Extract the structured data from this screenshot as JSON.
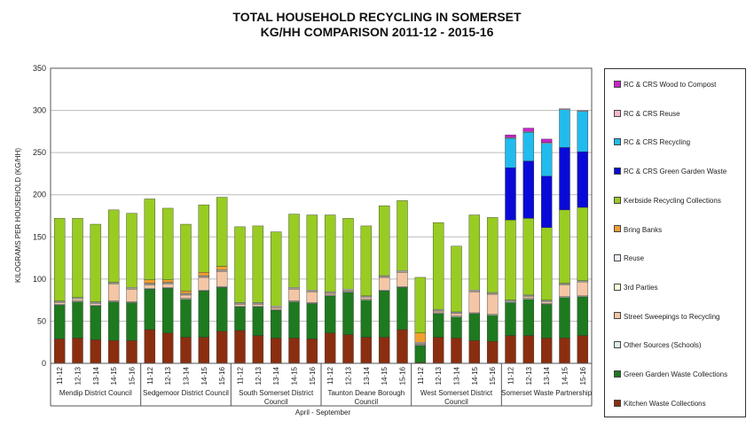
{
  "chart_data": {
    "type": "bar",
    "stacked": true,
    "title": "TOTAL HOUSEHOLD RECYCLING IN SOMERSET",
    "subtitle": "KG/HH COMPARISON 2011-12 - 2015-16",
    "ylabel": "KILOGRAMS PER HOUSEHOLD (KG/HH)",
    "xlabel": "April - September",
    "ylim": [
      0,
      350
    ],
    "yticks": [
      0,
      50,
      100,
      150,
      200,
      250,
      300,
      350
    ],
    "grid": true,
    "legend_position": "right",
    "groups": [
      {
        "name": "Mendip District Council",
        "categories": [
          "11-12",
          "12-13",
          "13-14",
          "14-15",
          "15-16"
        ]
      },
      {
        "name": "Sedgemoor District Council",
        "categories": [
          "11-12",
          "12-13",
          "13-14",
          "14-15",
          "15-16"
        ]
      },
      {
        "name": "South Somerset District Council",
        "categories": [
          "11-12",
          "12-13",
          "13-14",
          "14-15",
          "15-16"
        ]
      },
      {
        "name": "Taunton Deane Borough Council",
        "categories": [
          "11-12",
          "12-13",
          "13-14",
          "14-15",
          "15-16"
        ]
      },
      {
        "name": "West Somerset District Council",
        "categories": [
          "11-12",
          "12-13",
          "13-14",
          "14-15",
          "15-16"
        ]
      },
      {
        "name": "Somerset Waste Partnership",
        "categories": [
          "11-12",
          "12-13",
          "13-14",
          "14-15",
          "15-16"
        ]
      }
    ],
    "series": [
      {
        "name": "Kitchen Waste Collections",
        "color": "#8B2E0F",
        "values": [
          29,
          30,
          28,
          27,
          27,
          40,
          36,
          31,
          31,
          38,
          39,
          33,
          30,
          30,
          29,
          36,
          34,
          31,
          31,
          40,
          1,
          31,
          30,
          27,
          26,
          33,
          33,
          30,
          30,
          33
        ]
      },
      {
        "name": "Green Garden Waste Collections",
        "color": "#1E7A1E",
        "values": [
          40,
          43,
          40,
          46,
          45,
          48,
          53,
          45,
          55,
          52,
          28,
          34,
          33,
          43,
          42,
          44,
          50,
          44,
          55,
          50,
          20,
          28,
          25,
          32,
          31,
          39,
          43,
          40,
          48,
          46
        ]
      },
      {
        "name": "Other Sources (Schools)",
        "color": "#DDEEEE",
        "values": [
          1,
          1,
          1,
          1,
          1,
          1,
          1,
          1,
          1,
          1,
          1,
          1,
          1,
          1,
          1,
          1,
          1,
          1,
          1,
          1,
          1,
          1,
          1,
          1,
          1,
          1,
          1,
          1,
          1,
          1
        ]
      },
      {
        "name": "Street Sweepings to Recycling",
        "color": "#F5C6A5",
        "values": [
          2,
          2,
          2,
          20,
          15,
          4,
          4,
          4,
          15,
          18,
          2,
          2,
          2,
          14,
          13,
          2,
          1,
          2,
          15,
          17,
          1,
          2,
          3,
          25,
          24,
          0,
          2,
          2,
          14,
          16
        ]
      },
      {
        "name": "3rd Parties",
        "color": "#FFFFD8",
        "values": [
          1,
          1,
          1,
          1,
          1,
          1,
          1,
          1,
          1,
          1,
          1,
          1,
          1,
          1,
          1,
          1,
          1,
          1,
          1,
          1,
          1,
          1,
          1,
          1,
          1,
          1,
          1,
          1,
          1,
          1
        ]
      },
      {
        "name": "Reuse",
        "color": "#EEEEFF",
        "values": [
          1,
          1,
          1,
          1,
          1,
          1,
          1,
          1,
          1,
          1,
          1,
          1,
          1,
          1,
          1,
          1,
          1,
          1,
          1,
          1,
          1,
          1,
          1,
          1,
          1,
          1,
          1,
          1,
          1,
          1
        ]
      },
      {
        "name": "Bring Banks",
        "color": "#F0A030",
        "values": [
          0,
          0,
          0,
          0,
          0,
          4,
          3,
          3,
          4,
          4,
          0,
          0,
          0,
          0,
          0,
          0,
          0,
          0,
          0,
          0,
          11,
          0,
          0,
          0,
          0,
          0,
          0,
          0,
          0,
          0
        ]
      },
      {
        "name": "Kerbside Recycling Collections",
        "color": "#99CC22",
        "values": [
          98,
          94,
          92,
          86,
          88,
          96,
          85,
          79,
          80,
          82,
          90,
          91,
          88,
          87,
          89,
          91,
          84,
          83,
          83,
          83,
          66,
          103,
          78,
          89,
          89,
          95,
          91,
          86,
          87,
          87
        ]
      },
      {
        "name": "RC & CRS Green Garden Waste",
        "color": "#0A0AD8",
        "values": [
          0,
          0,
          0,
          0,
          0,
          0,
          0,
          0,
          0,
          0,
          0,
          0,
          0,
          0,
          0,
          0,
          0,
          0,
          0,
          0,
          0,
          0,
          0,
          0,
          0,
          62,
          68,
          61,
          74,
          66
        ]
      },
      {
        "name": "RC & CRS Recycling",
        "color": "#22BBEE",
        "values": [
          0,
          0,
          0,
          0,
          0,
          0,
          0,
          0,
          0,
          0,
          0,
          0,
          0,
          0,
          0,
          0,
          0,
          0,
          0,
          0,
          0,
          0,
          0,
          0,
          0,
          35,
          34,
          39,
          45,
          48
        ]
      },
      {
        "name": "RC & CRS Reuse",
        "color": "#F8B8C8",
        "values": [
          0,
          0,
          0,
          0,
          0,
          0,
          0,
          0,
          0,
          0,
          0,
          0,
          0,
          0,
          0,
          0,
          0,
          0,
          0,
          0,
          0,
          0,
          0,
          0,
          0,
          1,
          1,
          1,
          1,
          1
        ]
      },
      {
        "name": "RC & CRS Wood to Compost",
        "color": "#CC22CC",
        "values": [
          0,
          0,
          0,
          0,
          0,
          0,
          0,
          0,
          0,
          0,
          0,
          0,
          0,
          0,
          0,
          0,
          0,
          0,
          0,
          0,
          0,
          0,
          0,
          0,
          0,
          3,
          4,
          4,
          0,
          0
        ]
      }
    ]
  }
}
